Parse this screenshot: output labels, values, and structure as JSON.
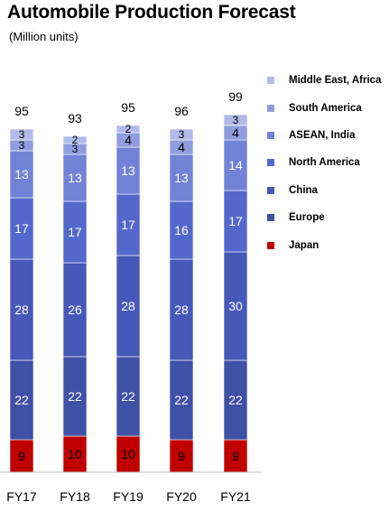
{
  "chart_data": {
    "type": "bar",
    "stacked": true,
    "title": "Automobile Production Forecast",
    "subtitle": "(Million units)",
    "categories": [
      "FY17",
      "FY18",
      "FY19",
      "FY20",
      "FY21"
    ],
    "totals": [
      95,
      93,
      95,
      96,
      99
    ],
    "series": [
      {
        "name": "Japan",
        "color": "#c00000",
        "values": [
          9,
          10,
          10,
          9,
          9
        ]
      },
      {
        "name": "Europe",
        "color": "#3f51a6",
        "values": [
          22,
          22,
          22,
          22,
          22
        ]
      },
      {
        "name": "China",
        "color": "#4659b8",
        "values": [
          28,
          26,
          28,
          28,
          30
        ]
      },
      {
        "name": "North America",
        "color": "#5468cc",
        "values": [
          17,
          17,
          17,
          16,
          17
        ]
      },
      {
        "name": "ASEAN, India",
        "color": "#7282d6",
        "values": [
          13,
          13,
          13,
          13,
          14
        ]
      },
      {
        "name": "South America",
        "color": "#8f9ddf",
        "values": [
          3,
          3,
          4,
          4,
          4
        ]
      },
      {
        "name": "Middle East, Africa",
        "color": "#b1bbea",
        "values": [
          3,
          2,
          2,
          3,
          3
        ]
      }
    ],
    "legend_position": "right",
    "grid": false
  }
}
